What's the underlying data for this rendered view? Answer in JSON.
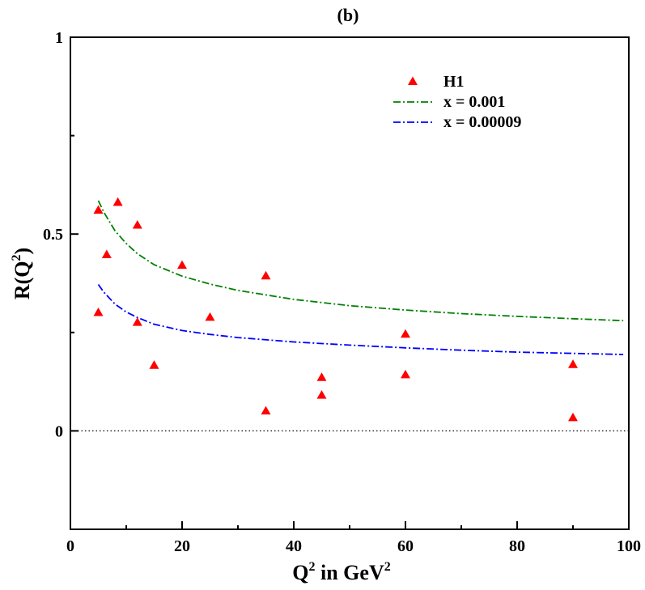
{
  "chart_data": {
    "type": "scatter",
    "title": "(b)",
    "xlabel": {
      "base": "Q",
      "sup": "2",
      "middle": " in GeV",
      "sup2": "2"
    },
    "ylabel": {
      "base": "R(Q",
      "sup": "2",
      "end": ")"
    },
    "xlim": [
      0,
      100
    ],
    "ylim": [
      -0.25,
      1.0
    ],
    "xticks": [
      0,
      20,
      40,
      60,
      80,
      100
    ],
    "xtick_labels": [
      "0",
      "20",
      "40",
      "60",
      "80",
      "100"
    ],
    "yticks": [
      0,
      0.5,
      1
    ],
    "ytick_labels": [
      "0",
      "0.5",
      "1"
    ],
    "reference_line": {
      "y": 0,
      "style": "dotted"
    },
    "legend_position": "top-right",
    "series": [
      {
        "name": "H1",
        "kind": "markers",
        "marker": "triangle",
        "color": "#ff0000",
        "points": [
          {
            "x": 5,
            "y": 0.56
          },
          {
            "x": 5,
            "y": 0.3
          },
          {
            "x": 6.5,
            "y": 0.447
          },
          {
            "x": 8.5,
            "y": 0.58
          },
          {
            "x": 12,
            "y": 0.522
          },
          {
            "x": 12,
            "y": 0.275
          },
          {
            "x": 15,
            "y": 0.166
          },
          {
            "x": 20,
            "y": 0.42
          },
          {
            "x": 25,
            "y": 0.288
          },
          {
            "x": 35,
            "y": 0.393
          },
          {
            "x": 35,
            "y": 0.05
          },
          {
            "x": 45,
            "y": 0.135
          },
          {
            "x": 45,
            "y": 0.09
          },
          {
            "x": 60,
            "y": 0.245
          },
          {
            "x": 60,
            "y": 0.142
          },
          {
            "x": 90,
            "y": 0.168
          },
          {
            "x": 90,
            "y": 0.033
          }
        ]
      },
      {
        "name": "x = 0.001",
        "kind": "line",
        "style": "dashdot",
        "color": "#008000",
        "points": [
          {
            "x": 5,
            "y": 0.585
          },
          {
            "x": 6,
            "y": 0.555
          },
          {
            "x": 8,
            "y": 0.508
          },
          {
            "x": 10,
            "y": 0.476
          },
          {
            "x": 12,
            "y": 0.45
          },
          {
            "x": 15,
            "y": 0.422
          },
          {
            "x": 20,
            "y": 0.393
          },
          {
            "x": 25,
            "y": 0.373
          },
          {
            "x": 30,
            "y": 0.357
          },
          {
            "x": 40,
            "y": 0.334
          },
          {
            "x": 50,
            "y": 0.318
          },
          {
            "x": 60,
            "y": 0.307
          },
          {
            "x": 70,
            "y": 0.298
          },
          {
            "x": 80,
            "y": 0.291
          },
          {
            "x": 90,
            "y": 0.285
          },
          {
            "x": 99,
            "y": 0.28
          }
        ]
      },
      {
        "name": "x = 0.00009",
        "kind": "line",
        "style": "dashdot",
        "color": "#0000ff",
        "points": [
          {
            "x": 5,
            "y": 0.372
          },
          {
            "x": 6,
            "y": 0.352
          },
          {
            "x": 8,
            "y": 0.322
          },
          {
            "x": 10,
            "y": 0.302
          },
          {
            "x": 12,
            "y": 0.288
          },
          {
            "x": 15,
            "y": 0.271
          },
          {
            "x": 20,
            "y": 0.255
          },
          {
            "x": 25,
            "y": 0.245
          },
          {
            "x": 30,
            "y": 0.237
          },
          {
            "x": 40,
            "y": 0.226
          },
          {
            "x": 50,
            "y": 0.218
          },
          {
            "x": 60,
            "y": 0.211
          },
          {
            "x": 70,
            "y": 0.205
          },
          {
            "x": 80,
            "y": 0.2
          },
          {
            "x": 90,
            "y": 0.197
          },
          {
            "x": 99,
            "y": 0.194
          }
        ]
      }
    ]
  }
}
